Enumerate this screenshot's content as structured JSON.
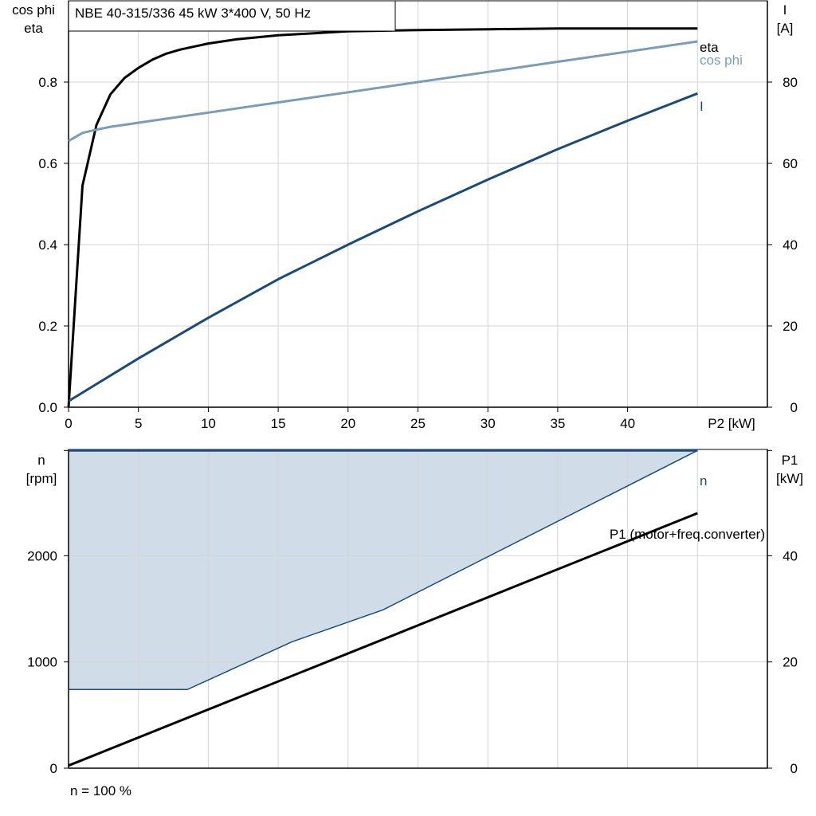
{
  "title": "NBE 40-315/336   45 kW   3*400 V, 50 Hz",
  "footer": "n = 100 %",
  "colors": {
    "eta": "#000000",
    "cos_phi": "#7a9cbb",
    "current": "#1a4a7a",
    "speed": "#1a4a7a",
    "speed_fill": "#d0dce8",
    "p1": "#000000",
    "grid": "#d4d4d4"
  },
  "chart_data": [
    {
      "type": "line",
      "title": "NBE 40-315/336   45 kW   3*400 V, 50 Hz",
      "xlabel": "P2 [kW]",
      "ylabel_left": [
        "cos phi",
        "eta"
      ],
      "ylabel_right": [
        "I",
        "[A]"
      ],
      "xlim": [
        0,
        50
      ],
      "ylim_left": [
        0,
        1.0
      ],
      "ylim_right": [
        0,
        100
      ],
      "xticks": [
        0,
        5,
        10,
        15,
        20,
        25,
        30,
        35,
        40
      ],
      "yticks_left": [
        0.0,
        0.2,
        0.4,
        0.6,
        0.8
      ],
      "yticks_right": [
        0,
        20,
        40,
        60,
        80
      ],
      "grid": true,
      "series": [
        {
          "name": "eta",
          "axis": "left",
          "x": [
            0,
            1,
            2,
            3,
            4,
            5,
            6,
            7,
            8,
            10,
            12,
            15,
            20,
            25,
            30,
            35,
            40,
            45
          ],
          "y": [
            0.0,
            0.545,
            0.695,
            0.77,
            0.81,
            0.835,
            0.855,
            0.87,
            0.88,
            0.895,
            0.905,
            0.915,
            0.925,
            0.928,
            0.93,
            0.932,
            0.932,
            0.932
          ]
        },
        {
          "name": "cos phi",
          "axis": "left",
          "x": [
            0,
            1,
            2,
            3,
            4,
            5,
            10,
            15,
            20,
            25,
            30,
            35,
            40,
            45
          ],
          "y": [
            0.655,
            0.675,
            0.683,
            0.69,
            0.695,
            0.7,
            0.725,
            0.75,
            0.775,
            0.8,
            0.825,
            0.85,
            0.875,
            0.9
          ]
        },
        {
          "name": "I",
          "axis": "right",
          "x": [
            0,
            5,
            10,
            15,
            20,
            25,
            30,
            35,
            40,
            45
          ],
          "y": [
            1.5,
            12,
            22,
            31.5,
            40,
            48.2,
            56,
            63.5,
            70.5,
            77.2
          ]
        }
      ]
    },
    {
      "type": "area",
      "xlim": [
        0,
        50
      ],
      "ylabel_left": [
        "n",
        "[rpm]"
      ],
      "ylabel_right": [
        "P1",
        "[kW]"
      ],
      "ylim_left": [
        0,
        3000
      ],
      "ylim_right": [
        0,
        60
      ],
      "yticks_left": [
        0,
        1000,
        2000
      ],
      "yticks_right": [
        0,
        20,
        40
      ],
      "grid": true,
      "series": [
        {
          "name": "n",
          "axis": "left",
          "x": [
            0,
            45
          ],
          "y": [
            2990,
            2990
          ]
        },
        {
          "name": "P1 (motor+freq.converter)",
          "axis": "right",
          "x": [
            0,
            45
          ],
          "y": [
            0.5,
            48
          ]
        }
      ],
      "shaded_region": {
        "upper_x": [
          0,
          45
        ],
        "upper_y": [
          2990,
          2990
        ],
        "lower_x": [
          0,
          8.5,
          16,
          22.5,
          45
        ],
        "lower_y": [
          740,
          740,
          1190,
          1490,
          2990
        ]
      }
    }
  ]
}
